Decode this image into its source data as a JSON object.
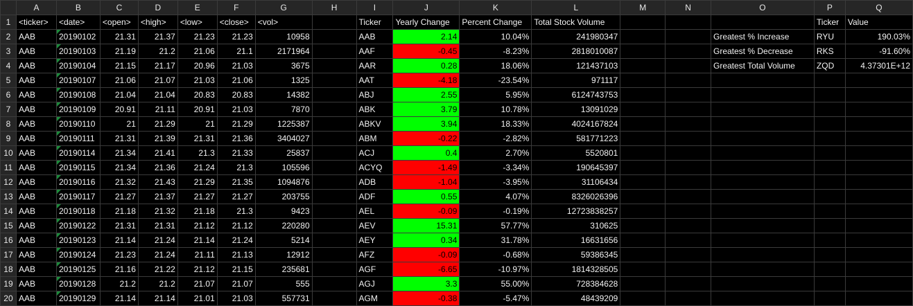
{
  "columns": [
    "A",
    "B",
    "C",
    "D",
    "E",
    "F",
    "G",
    "H",
    "I",
    "J",
    "K",
    "L",
    "M",
    "N",
    "O",
    "P",
    "Q"
  ],
  "row_numbers": [
    "1",
    "2",
    "3",
    "4",
    "5",
    "6",
    "7",
    "8",
    "9",
    "10",
    "11",
    "12",
    "13",
    "14",
    "15",
    "16",
    "17",
    "18",
    "19",
    "20"
  ],
  "raw_headers": [
    "<ticker>",
    "<date>",
    "<open>",
    "<high>",
    "<low>",
    "<close>",
    "<vol>"
  ],
  "raw_rows": [
    [
      "AAB",
      "20190102",
      "21.31",
      "21.37",
      "21.23",
      "21.23",
      "10958"
    ],
    [
      "AAB",
      "20190103",
      "21.19",
      "21.2",
      "21.06",
      "21.1",
      "2171964"
    ],
    [
      "AAB",
      "20190104",
      "21.15",
      "21.17",
      "20.96",
      "21.03",
      "3675"
    ],
    [
      "AAB",
      "20190107",
      "21.06",
      "21.07",
      "21.03",
      "21.06",
      "1325"
    ],
    [
      "AAB",
      "20190108",
      "21.04",
      "21.04",
      "20.83",
      "20.83",
      "14382"
    ],
    [
      "AAB",
      "20190109",
      "20.91",
      "21.11",
      "20.91",
      "21.03",
      "7870"
    ],
    [
      "AAB",
      "20190110",
      "21",
      "21.29",
      "21",
      "21.29",
      "1225387"
    ],
    [
      "AAB",
      "20190111",
      "21.31",
      "21.39",
      "21.31",
      "21.36",
      "3404027"
    ],
    [
      "AAB",
      "20190114",
      "21.34",
      "21.41",
      "21.3",
      "21.33",
      "25837"
    ],
    [
      "AAB",
      "20190115",
      "21.34",
      "21.36",
      "21.24",
      "21.3",
      "105596"
    ],
    [
      "AAB",
      "20190116",
      "21.32",
      "21.43",
      "21.29",
      "21.35",
      "1094876"
    ],
    [
      "AAB",
      "20190117",
      "21.27",
      "21.37",
      "21.27",
      "21.27",
      "203755"
    ],
    [
      "AAB",
      "20190118",
      "21.18",
      "21.32",
      "21.18",
      "21.3",
      "9423"
    ],
    [
      "AAB",
      "20190122",
      "21.31",
      "21.31",
      "21.12",
      "21.12",
      "220280"
    ],
    [
      "AAB",
      "20190123",
      "21.14",
      "21.24",
      "21.14",
      "21.24",
      "5214"
    ],
    [
      "AAB",
      "20190124",
      "21.23",
      "21.24",
      "21.11",
      "21.13",
      "12912"
    ],
    [
      "AAB",
      "20190125",
      "21.16",
      "21.22",
      "21.12",
      "21.15",
      "235681"
    ],
    [
      "AAB",
      "20190128",
      "21.2",
      "21.2",
      "21.07",
      "21.07",
      "555"
    ],
    [
      "AAB",
      "20190129",
      "21.14",
      "21.14",
      "21.01",
      "21.03",
      "557731"
    ]
  ],
  "summary_headers": [
    "Ticker",
    "Yearly Change",
    "Percent Change",
    "Total Stock Volume"
  ],
  "summary_rows": [
    {
      "ticker": "AAB",
      "change": "2.14",
      "pct": "10.04%",
      "vol": "241980347",
      "color": "green"
    },
    {
      "ticker": "AAF",
      "change": "-0.45",
      "pct": "-8.23%",
      "vol": "2818010087",
      "color": "red"
    },
    {
      "ticker": "AAR",
      "change": "0.28",
      "pct": "18.06%",
      "vol": "121437103",
      "color": "green"
    },
    {
      "ticker": "AAT",
      "change": "-4.18",
      "pct": "-23.54%",
      "vol": "971117",
      "color": "red"
    },
    {
      "ticker": "ABJ",
      "change": "2.55",
      "pct": "5.95%",
      "vol": "6124743753",
      "color": "green"
    },
    {
      "ticker": "ABK",
      "change": "3.79",
      "pct": "10.78%",
      "vol": "13091029",
      "color": "green"
    },
    {
      "ticker": "ABKV",
      "change": "3.94",
      "pct": "18.33%",
      "vol": "4024167824",
      "color": "green"
    },
    {
      "ticker": "ABM",
      "change": "-0.22",
      "pct": "-2.82%",
      "vol": "581771223",
      "color": "red"
    },
    {
      "ticker": "ACJ",
      "change": "0.4",
      "pct": "2.70%",
      "vol": "5520801",
      "color": "green"
    },
    {
      "ticker": "ACYQ",
      "change": "-1.49",
      "pct": "-3.34%",
      "vol": "190645397",
      "color": "red"
    },
    {
      "ticker": "ADB",
      "change": "-1.04",
      "pct": "-3.95%",
      "vol": "31106434",
      "color": "red"
    },
    {
      "ticker": "ADF",
      "change": "0.55",
      "pct": "4.07%",
      "vol": "8326026396",
      "color": "green"
    },
    {
      "ticker": "AEL",
      "change": "-0.09",
      "pct": "-0.19%",
      "vol": "12723838257",
      "color": "red"
    },
    {
      "ticker": "AEV",
      "change": "15.31",
      "pct": "57.77%",
      "vol": "310625",
      "color": "green"
    },
    {
      "ticker": "AEY",
      "change": "0.34",
      "pct": "31.78%",
      "vol": "16631656",
      "color": "green"
    },
    {
      "ticker": "AFZ",
      "change": "-0.09",
      "pct": "-0.68%",
      "vol": "59386345",
      "color": "red"
    },
    {
      "ticker": "AGF",
      "change": "-6.65",
      "pct": "-10.97%",
      "vol": "1814328505",
      "color": "red"
    },
    {
      "ticker": "AGJ",
      "change": "3.3",
      "pct": "55.00%",
      "vol": "728384628",
      "color": "green"
    },
    {
      "ticker": "AGM",
      "change": "-0.38",
      "pct": "-5.47%",
      "vol": "48439209",
      "color": "red"
    }
  ],
  "greatest_headers": [
    "Ticker",
    "Value"
  ],
  "greatest_rows": [
    {
      "label": "Greatest % Increase",
      "ticker": "RYU",
      "value": "190.03%"
    },
    {
      "label": "Greatest % Decrease",
      "ticker": "RKS",
      "value": "-91.60%"
    },
    {
      "label": "Greatest Total Volume",
      "ticker": "ZQD",
      "value": "4.37301E+12"
    }
  ],
  "colors": {
    "positive": "#00ff00",
    "negative": "#ff0000",
    "background": "#000000",
    "header": "#262626"
  }
}
